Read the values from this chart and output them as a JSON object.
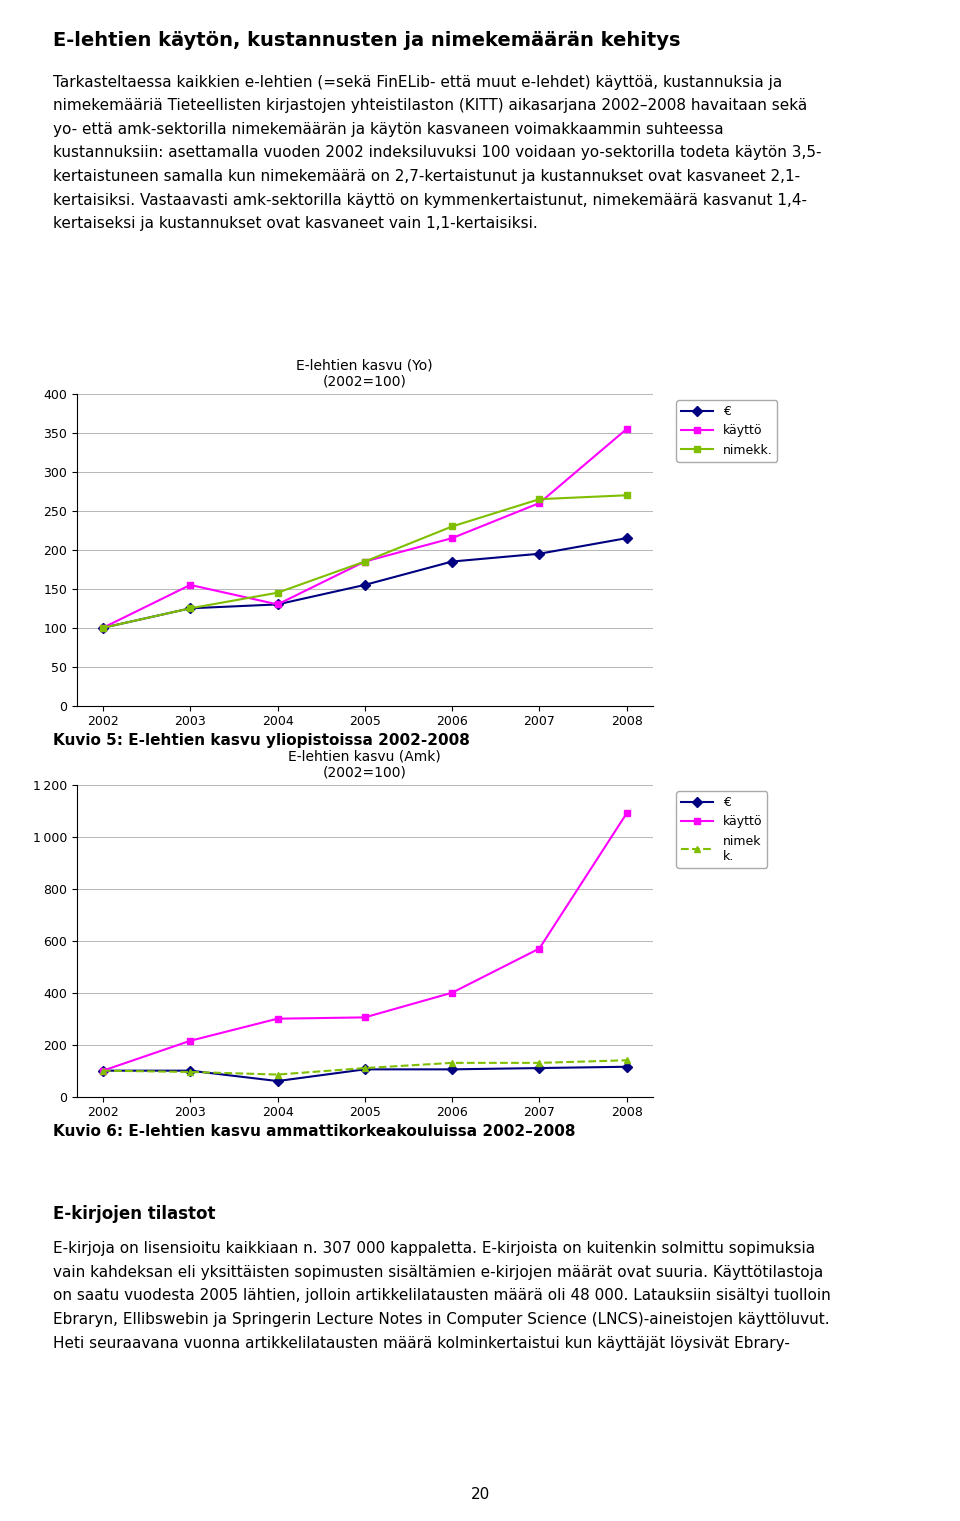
{
  "title": "E-lehtien käytön, kustannusten ja nimekemäärän kehitys",
  "body_line1": "Tarkasteltaessa kaikkien e-lehtien (=sekä FinELib- että muut e-lehdet) käyttöä, kustannuksia ja",
  "body_line2": "nimekemääriä Tieteellisten kirjastojen yhteistilaston (KITT) aikasarjana 2002–2008 havaitaan sekä",
  "body_line3": "yo- että amk-sektorilla nimekemäärän ja käytön kasvaneen voimakkaammin suhteessa",
  "body_line4": "kustannuksiin: asettamalla vuoden 2002 indeksiluvuksi 100 voidaan yo-sektorilla todeta käytön 3,5-",
  "body_line5": "kertaistuneen samalla kun nimekemäärä on 2,7-kertaistunut ja kustannukset ovat kasvaneet 2,1-",
  "body_line6": "kertaisiksi. Vastaavasti amk-sektorilla käyttö on kymmenkertaistunut, nimekemäärä kasvanut 1,4-",
  "body_line7": "kertaiseksi ja kustannukset ovat kasvaneet vain 1,1-kertaisiksi.",
  "chart1_title": "E-lehtien kasvu (Yo)",
  "chart1_subtitle": "(2002=100)",
  "chart2_title": "E-lehtien kasvu (Amk)",
  "chart2_subtitle": "(2002=100)",
  "caption1": "Kuvio 5: E-lehtien kasvu yliopistoissa 2002-2008",
  "caption2": "Kuvio 6: E-lehtien kasvu ammattikorkeakouluissa 2002–2008",
  "section_title": "E-kirjojen tilastot",
  "section_line1": "E-kirjoja on lisensioitu kaikkiaan n. 307 000 kappaletta. E-kirjoista on kuitenkin solmittu sopimuksia",
  "section_line2": "vain kahdeksan eli yksittäisten sopimusten sisältämien e-kirjojen määrät ovat suuria. Käyttötilastoja",
  "section_line3": "on saatu vuodesta 2005 lähtien, jolloin artikkelilatausten määrä oli 48 000. Latauksiin sisältyi tuolloin",
  "section_line4": "Ebraryn, Ellibswebin ja Springerin Lecture Notes in Computer Science (LNCS)-aineistojen käyttöluvut.",
  "section_line5": "Heti seuraavana vuonna artikkelilatausten määrä kolminkertaistui kun käyttäjät löysivät Ebrary-",
  "page_number": "20",
  "years": [
    2002,
    2003,
    2004,
    2005,
    2006,
    2007,
    2008
  ],
  "chart1_euro": [
    100,
    125,
    130,
    155,
    185,
    195,
    215
  ],
  "chart1_kaytto": [
    100,
    155,
    130,
    185,
    215,
    260,
    355
  ],
  "chart1_nimekk": [
    100,
    125,
    145,
    185,
    230,
    265,
    270
  ],
  "chart2_euro": [
    100,
    100,
    60,
    105,
    105,
    110,
    115
  ],
  "chart2_kaytto": [
    100,
    215,
    300,
    305,
    400,
    570,
    1090
  ],
  "chart2_nimekk": [
    100,
    95,
    85,
    110,
    130,
    130,
    140
  ],
  "euro_color": "#000080",
  "kaytto_color": "#FF00FF",
  "nimekk_color": "#7FBF00",
  "chart1_ylim": [
    0,
    400
  ],
  "chart1_yticks": [
    0,
    50,
    100,
    150,
    200,
    250,
    300,
    350,
    400
  ],
  "chart2_ylim": [
    0,
    1200
  ],
  "chart2_yticks": [
    0,
    200,
    400,
    600,
    800,
    1000,
    1200
  ]
}
